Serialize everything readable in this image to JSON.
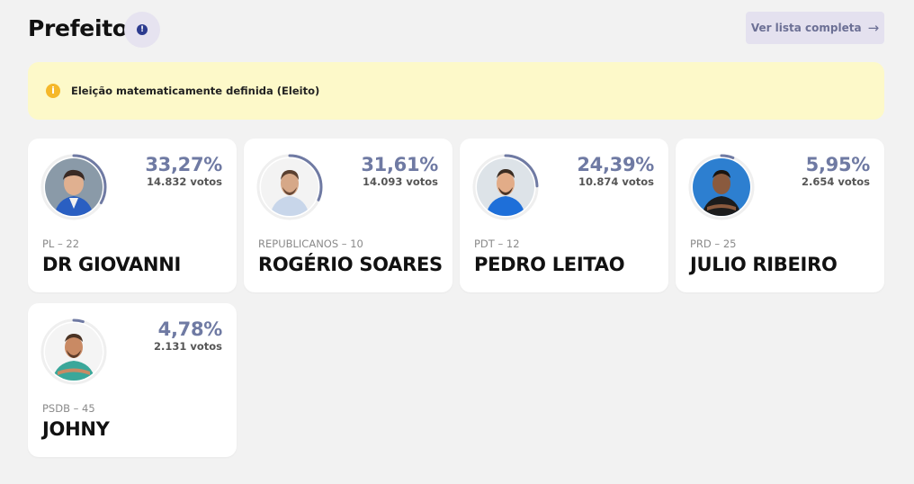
{
  "header": {
    "title": "Prefeito",
    "info_icon": "info-icon",
    "list_button_label": "Ver lista completa",
    "list_button_icon": "arrow-right-icon"
  },
  "alert": {
    "icon": "info-icon",
    "text": "Eleição matematicamente definida (Eleito)",
    "color": "#fdf9c9"
  },
  "colors": {
    "accent": "#6f7aa3",
    "background": "#f2f2f2"
  },
  "candidates": [
    {
      "party": "PL – 22",
      "name": "DR GIOVANNI",
      "percent": "33,27%",
      "votes": "14.832 votos",
      "share": 0.3327
    },
    {
      "party": "REPUBLICANOS – 10",
      "name": "ROGÉRIO SOARES",
      "percent": "31,61%",
      "votes": "14.093 votos",
      "share": 0.3161
    },
    {
      "party": "PDT – 12",
      "name": "PEDRO LEITAO",
      "percent": "24,39%",
      "votes": "10.874 votos",
      "share": 0.2439
    },
    {
      "party": "PRD – 25",
      "name": "JULIO RIBEIRO",
      "percent": "5,95%",
      "votes": "2.654 votos",
      "share": 0.0595
    },
    {
      "party": "PSDB – 45",
      "name": "JOHNY",
      "percent": "4,78%",
      "votes": "2.131 votos",
      "share": 0.0478
    }
  ]
}
